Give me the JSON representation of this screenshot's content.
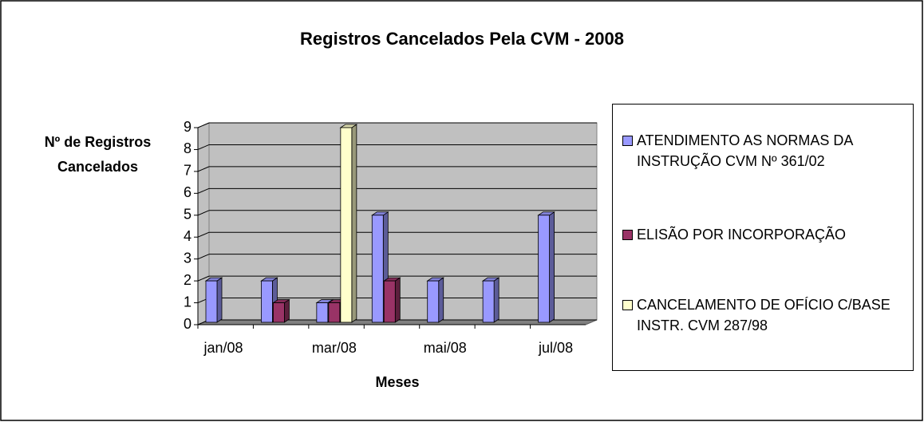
{
  "chart_data": {
    "type": "bar",
    "title": "Registros Cancelados Pela CVM - 2008",
    "y_label": "Nº de Registros Cancelados",
    "x_label": "Meses",
    "categories": [
      "jan/08",
      null,
      "mar/08",
      null,
      "mai/08",
      null,
      "jul/08"
    ],
    "series": [
      {
        "name": "ATENDIMENTO AS NORMAS DA INSTRUÇÃO CVM Nº 361/02",
        "color": "#9999ff",
        "values": [
          2,
          2,
          1,
          5,
          2,
          2,
          5
        ]
      },
      {
        "name": "ELISÃO POR INCORPORAÇÃO",
        "color": "#993366",
        "values": [
          null,
          1,
          1,
          2,
          null,
          null,
          null
        ]
      },
      {
        "name": "CANCELAMENTO DE OFÍCIO C/BASE INSTR. CVM 287/98",
        "color": "#ffffcc",
        "values": [
          null,
          null,
          9,
          null,
          null,
          null,
          null
        ]
      }
    ],
    "ylim": [
      0,
      9
    ],
    "yticks": [
      0,
      1,
      2,
      3,
      4,
      5,
      6,
      7,
      8,
      9
    ],
    "grid": true,
    "legend": "right"
  }
}
